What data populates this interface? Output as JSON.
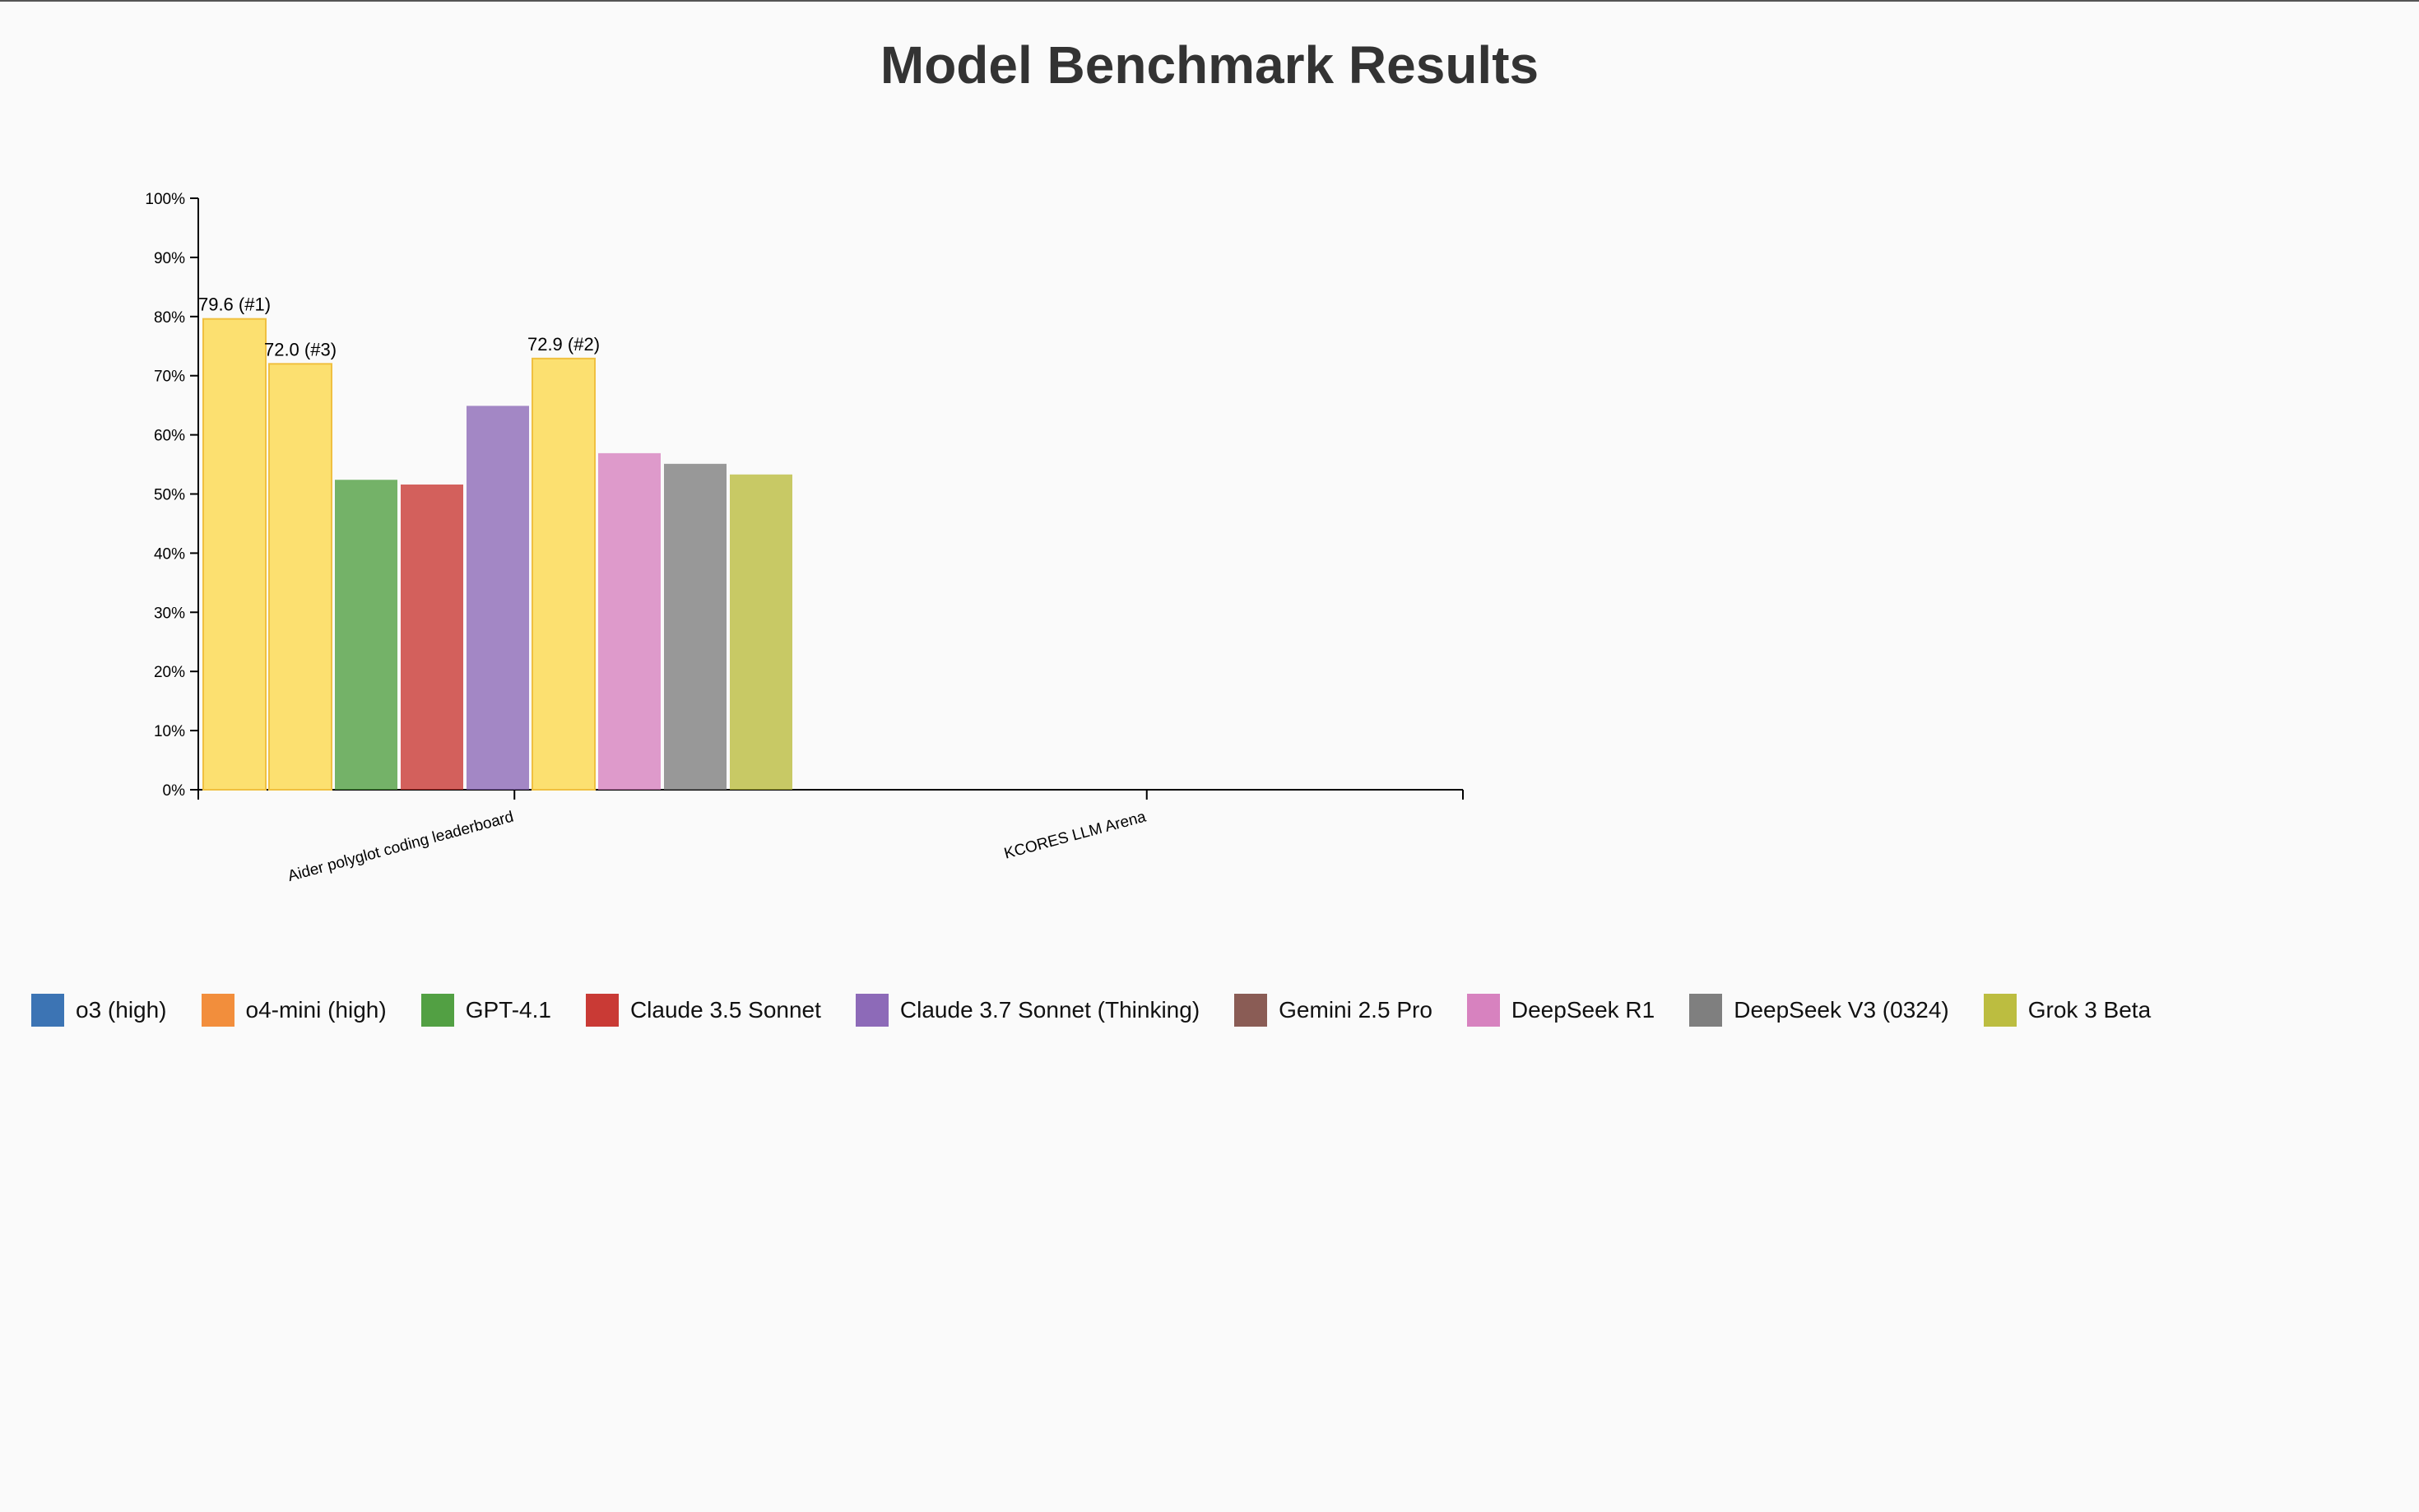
{
  "chart_data": {
    "type": "bar",
    "title": "Model Benchmark Results",
    "xlabel": "",
    "ylabel": "",
    "ylim": [
      0,
      100
    ],
    "y_ticks": [
      "0%",
      "10%",
      "20%",
      "30%",
      "40%",
      "50%",
      "60%",
      "70%",
      "80%",
      "90%",
      "100%"
    ],
    "categories": [
      "Aider polyglot coding leaderboard",
      "KCORES LLM Arena"
    ],
    "highlight_color": "#fce070",
    "series": [
      {
        "name": "o3 (high)",
        "color": "#3c74b4",
        "values": [
          79.6,
          null
        ],
        "labels": [
          "79.6 (#1)",
          ""
        ],
        "highlighted": [
          true,
          false
        ]
      },
      {
        "name": "o4-mini (high)",
        "color": "#f28e3c",
        "values": [
          72.0,
          null
        ],
        "labels": [
          "72.0 (#3)",
          ""
        ],
        "highlighted": [
          true,
          false
        ]
      },
      {
        "name": "GPT-4.1",
        "color": "#52a043",
        "values": [
          52.4,
          null
        ],
        "labels": [
          "",
          ""
        ],
        "highlighted": [
          false,
          false
        ]
      },
      {
        "name": "Claude 3.5 Sonnet",
        "color": "#c93a35",
        "values": [
          51.6,
          null
        ],
        "labels": [
          "",
          ""
        ],
        "highlighted": [
          false,
          false
        ]
      },
      {
        "name": "Claude 3.7 Sonnet (Thinking)",
        "color": "#8d6ab8",
        "values": [
          64.9,
          null
        ],
        "labels": [
          "",
          ""
        ],
        "highlighted": [
          false,
          false
        ]
      },
      {
        "name": "Gemini 2.5 Pro",
        "color": "#8a5c55",
        "values": [
          72.9,
          null
        ],
        "labels": [
          "72.9 (#2)",
          ""
        ],
        "highlighted": [
          true,
          false
        ]
      },
      {
        "name": "DeepSeek R1",
        "color": "#d782bf",
        "values": [
          56.9,
          null
        ],
        "labels": [
          "",
          ""
        ],
        "highlighted": [
          false,
          false
        ]
      },
      {
        "name": "DeepSeek V3 (0324)",
        "color": "#7f7f7f",
        "values": [
          55.1,
          null
        ],
        "labels": [
          "",
          ""
        ],
        "highlighted": [
          false,
          false
        ]
      },
      {
        "name": "Grok 3 Beta",
        "color": "#bcbd40",
        "values": [
          53.3,
          null
        ],
        "labels": [
          "",
          ""
        ],
        "highlighted": [
          false,
          false
        ]
      }
    ],
    "grid": false,
    "legend_position": "bottom-left"
  }
}
